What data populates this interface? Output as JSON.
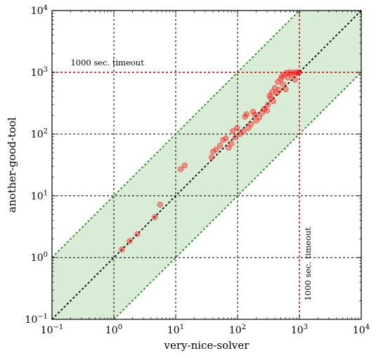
{
  "chart_data": {
    "type": "scatter",
    "xlabel": "very-nice-solver",
    "ylabel": "another-good-tool",
    "xscale": "log",
    "yscale": "log",
    "xlim": [
      0.1,
      10000
    ],
    "ylim": [
      0.1,
      10000
    ],
    "grid": true,
    "ticks": [
      {
        "value": 0.1,
        "base": "10",
        "exp": "−1"
      },
      {
        "value": 1,
        "base": "10",
        "exp": "0"
      },
      {
        "value": 10,
        "base": "10",
        "exp": "1"
      },
      {
        "value": 100,
        "base": "10",
        "exp": "2"
      },
      {
        "value": 1000,
        "base": "10",
        "exp": "3"
      },
      {
        "value": 10000,
        "base": "10",
        "exp": "4"
      }
    ],
    "timeout": 1000,
    "timeout_label_x": "1000 sec. timeout",
    "timeout_label_y": "1000 sec. timeout",
    "band_factor": 10,
    "colors": {
      "points": "#ff0000",
      "band_fill": "#d9ecd6",
      "band_edge": "#228b22",
      "diagonal": "#000000",
      "timeout": "#cc0000",
      "grid": "#000000"
    },
    "points": [
      {
        "x": 1.35,
        "y": 1.35
      },
      {
        "x": 1.8,
        "y": 1.85
      },
      {
        "x": 2.4,
        "y": 2.4
      },
      {
        "x": 4.6,
        "y": 4.5
      },
      {
        "x": 5.6,
        "y": 7.2
      },
      {
        "x": 12,
        "y": 27
      },
      {
        "x": 14,
        "y": 31
      },
      {
        "x": 38,
        "y": 42
      },
      {
        "x": 40,
        "y": 52
      },
      {
        "x": 45,
        "y": 56
      },
      {
        "x": 52,
        "y": 65
      },
      {
        "x": 58,
        "y": 80
      },
      {
        "x": 65,
        "y": 85
      },
      {
        "x": 72,
        "y": 60
      },
      {
        "x": 80,
        "y": 70
      },
      {
        "x": 84,
        "y": 112
      },
      {
        "x": 92,
        "y": 88
      },
      {
        "x": 98,
        "y": 125
      },
      {
        "x": 110,
        "y": 100
      },
      {
        "x": 125,
        "y": 110
      },
      {
        "x": 132,
        "y": 190
      },
      {
        "x": 140,
        "y": 210
      },
      {
        "x": 150,
        "y": 125
      },
      {
        "x": 165,
        "y": 145
      },
      {
        "x": 178,
        "y": 230
      },
      {
        "x": 190,
        "y": 205
      },
      {
        "x": 200,
        "y": 165
      },
      {
        "x": 225,
        "y": 185
      },
      {
        "x": 250,
        "y": 220
      },
      {
        "x": 270,
        "y": 255
      },
      {
        "x": 300,
        "y": 240
      },
      {
        "x": 310,
        "y": 300
      },
      {
        "x": 330,
        "y": 420
      },
      {
        "x": 345,
        "y": 380
      },
      {
        "x": 360,
        "y": 480
      },
      {
        "x": 380,
        "y": 340
      },
      {
        "x": 400,
        "y": 560
      },
      {
        "x": 430,
        "y": 460
      },
      {
        "x": 450,
        "y": 700
      },
      {
        "x": 470,
        "y": 520
      },
      {
        "x": 500,
        "y": 780
      },
      {
        "x": 520,
        "y": 860
      },
      {
        "x": 545,
        "y": 640
      },
      {
        "x": 570,
        "y": 920
      },
      {
        "x": 600,
        "y": 530
      },
      {
        "x": 620,
        "y": 980
      },
      {
        "x": 650,
        "y": 820
      },
      {
        "x": 700,
        "y": 1000
      },
      {
        "x": 750,
        "y": 900
      },
      {
        "x": 800,
        "y": 990
      },
      {
        "x": 850,
        "y": 760
      },
      {
        "x": 900,
        "y": 1000
      },
      {
        "x": 950,
        "y": 960
      },
      {
        "x": 1000,
        "y": 1000
      }
    ]
  }
}
